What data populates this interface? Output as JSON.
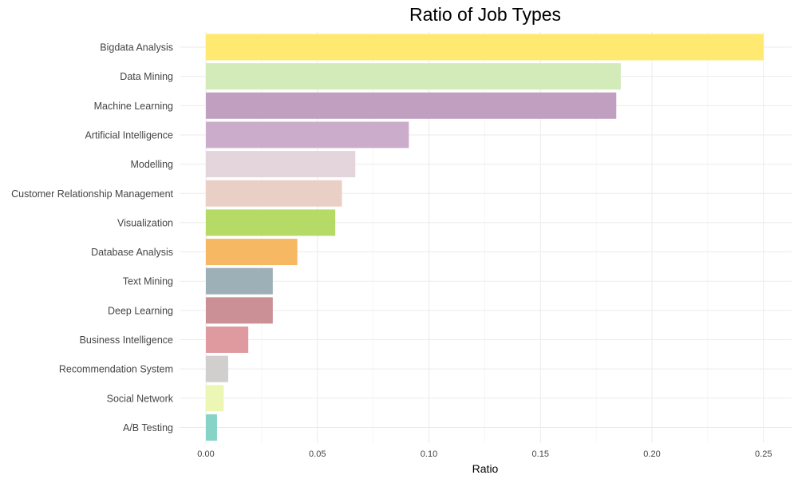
{
  "chart_data": {
    "type": "bar",
    "orientation": "horizontal",
    "title": "Ratio of Job Types",
    "xlabel": "Ratio",
    "ylabel": "",
    "xlim": [
      0,
      0.26
    ],
    "xticks": [
      0.0,
      0.05,
      0.1,
      0.15,
      0.2,
      0.25
    ],
    "xtick_labels": [
      "0.00",
      "0.05",
      "0.10",
      "0.15",
      "0.20",
      "0.25"
    ],
    "grid": true,
    "legend": "none",
    "categories": [
      "Bigdata Analysis",
      "Data Mining",
      "Machine Learning",
      "Artificial Intelligence",
      "Modelling",
      "Customer Relationship Management",
      "Visualization",
      "Database Analysis",
      "Text Mining",
      "Deep Learning",
      "Business Intelligence",
      "Recommendation System",
      "Social Network",
      "A/B Testing"
    ],
    "values": [
      0.25,
      0.186,
      0.184,
      0.091,
      0.067,
      0.061,
      0.058,
      0.041,
      0.03,
      0.03,
      0.019,
      0.01,
      0.008,
      0.005
    ],
    "colors": [
      "#FFE970",
      "#D3EAB9",
      "#C09FC0",
      "#CBADCB",
      "#E4D4DC",
      "#EACFC6",
      "#B5DA66",
      "#F7B864",
      "#9EB0B7",
      "#CB9096",
      "#DF9AA0",
      "#D1CFCE",
      "#ECF7B6",
      "#88D3C7"
    ]
  }
}
